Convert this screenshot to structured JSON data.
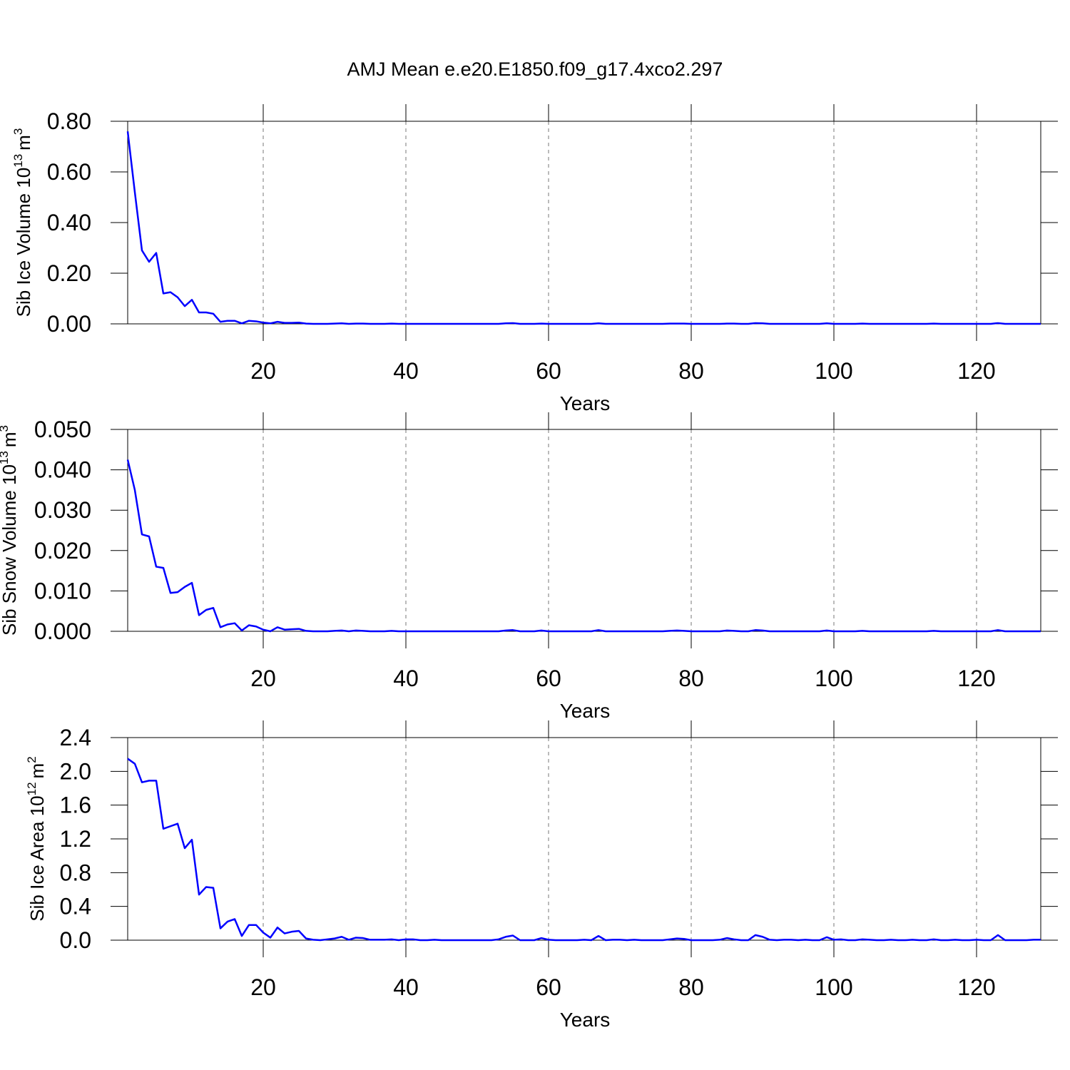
{
  "title": "AMJ Mean e.e20.E1850.f09_g17.4xco2.297",
  "chart_data": [
    {
      "type": "line",
      "xlabel": "Years",
      "ylabel": "Sib Ice Volume 10",
      "ylabel_exponent": "13",
      "ylabel_unit": "m",
      "ylabel_unit_exponent": "3",
      "xlim": [
        1,
        129
      ],
      "xticks": [
        20,
        40,
        60,
        80,
        100,
        120
      ],
      "grid": true,
      "ylim": [
        0,
        0.8
      ],
      "yticks": [
        {
          "value": 0,
          "label": "0.00"
        },
        {
          "value": 0.2,
          "label": "0.20"
        },
        {
          "value": 0.4,
          "label": "0.40"
        },
        {
          "value": 0.6,
          "label": "0.60"
        },
        {
          "value": 0.8,
          "label": "0.80"
        }
      ],
      "color": "#0000ff",
      "x": [
        1,
        2,
        3,
        4,
        5,
        6,
        7,
        8,
        9,
        10,
        11,
        12,
        13,
        14,
        15,
        16,
        17,
        18,
        19,
        20,
        21,
        22,
        23,
        24,
        25,
        26,
        27,
        28,
        29,
        30,
        31,
        32,
        33,
        34,
        35,
        36,
        37,
        38,
        39,
        40,
        41,
        42,
        43,
        44,
        45,
        46,
        47,
        48,
        49,
        50,
        51,
        52,
        53,
        54,
        55,
        56,
        57,
        58,
        59,
        60,
        61,
        62,
        63,
        64,
        65,
        66,
        67,
        68,
        69,
        70,
        71,
        72,
        73,
        74,
        75,
        76,
        77,
        78,
        79,
        80,
        81,
        82,
        83,
        84,
        85,
        86,
        87,
        88,
        89,
        90,
        91,
        92,
        93,
        94,
        95,
        96,
        97,
        98,
        99,
        100,
        101,
        102,
        103,
        104,
        105,
        106,
        107,
        108,
        109,
        110,
        111,
        112,
        113,
        114,
        115,
        116,
        117,
        118,
        119,
        120,
        121,
        122,
        123,
        124,
        125,
        126,
        127,
        128,
        129
      ],
      "values": [
        0.76,
        0.52,
        0.29,
        0.245,
        0.28,
        0.12,
        0.125,
        0.105,
        0.07,
        0.095,
        0.045,
        0.045,
        0.04,
        0.008,
        0.012,
        0.012,
        0.002,
        0.012,
        0.01,
        0.005,
        0.002,
        0.008,
        0.004,
        0.004,
        0.005,
        0.001,
        0,
        0,
        0,
        0.001,
        0.002,
        0,
        0.001,
        0.001,
        0,
        0,
        0,
        0.001,
        0,
        0,
        0,
        0,
        0,
        0,
        0,
        0,
        0,
        0,
        0,
        0,
        0,
        0,
        0,
        0.002,
        0.003,
        0,
        0,
        0,
        0.001,
        0,
        0,
        0,
        0,
        0,
        0,
        0,
        0.002,
        0,
        0,
        0,
        0,
        0,
        0,
        0,
        0,
        0,
        0.001,
        0.001,
        0.001,
        0,
        0,
        0,
        0,
        0,
        0.001,
        0.001,
        0,
        0,
        0.003,
        0.002,
        0,
        0,
        0,
        0,
        0,
        0,
        0,
        0,
        0.002,
        0,
        0,
        0,
        0,
        0.001,
        0,
        0,
        0,
        0,
        0,
        0,
        0,
        0,
        0,
        0.001,
        0,
        0,
        0,
        0,
        0,
        0,
        0,
        0,
        0.003,
        0,
        0,
        0,
        0,
        0,
        0
      ]
    },
    {
      "type": "line",
      "xlabel": "Years",
      "ylabel": "Sib Snow Volume 10",
      "ylabel_exponent": "13",
      "ylabel_unit": "m",
      "ylabel_unit_exponent": "3",
      "xlim": [
        1,
        129
      ],
      "xticks": [
        20,
        40,
        60,
        80,
        100,
        120
      ],
      "grid": true,
      "ylim": [
        0,
        0.05
      ],
      "yticks": [
        {
          "value": 0,
          "label": "0.000"
        },
        {
          "value": 0.01,
          "label": "0.010"
        },
        {
          "value": 0.02,
          "label": "0.020"
        },
        {
          "value": 0.03,
          "label": "0.030"
        },
        {
          "value": 0.04,
          "label": "0.040"
        },
        {
          "value": 0.05,
          "label": "0.050"
        }
      ],
      "color": "#0000ff",
      "x": [
        1,
        2,
        3,
        4,
        5,
        6,
        7,
        8,
        9,
        10,
        11,
        12,
        13,
        14,
        15,
        16,
        17,
        18,
        19,
        20,
        21,
        22,
        23,
        24,
        25,
        26,
        27,
        28,
        29,
        30,
        31,
        32,
        33,
        34,
        35,
        36,
        37,
        38,
        39,
        40,
        41,
        42,
        43,
        44,
        45,
        46,
        47,
        48,
        49,
        50,
        51,
        52,
        53,
        54,
        55,
        56,
        57,
        58,
        59,
        60,
        61,
        62,
        63,
        64,
        65,
        66,
        67,
        68,
        69,
        70,
        71,
        72,
        73,
        74,
        75,
        76,
        77,
        78,
        79,
        80,
        81,
        82,
        83,
        84,
        85,
        86,
        87,
        88,
        89,
        90,
        91,
        92,
        93,
        94,
        95,
        96,
        97,
        98,
        99,
        100,
        101,
        102,
        103,
        104,
        105,
        106,
        107,
        108,
        109,
        110,
        111,
        112,
        113,
        114,
        115,
        116,
        117,
        118,
        119,
        120,
        121,
        122,
        123,
        124,
        125,
        126,
        127,
        128,
        129
      ],
      "values": [
        0.0425,
        0.035,
        0.024,
        0.0235,
        0.016,
        0.0157,
        0.0095,
        0.0097,
        0.011,
        0.012,
        0.004,
        0.0053,
        0.0058,
        0.001,
        0.0017,
        0.002,
        0.0002,
        0.0015,
        0.0012,
        0.0004,
        0,
        0.001,
        0.0004,
        0.0005,
        0.0006,
        0.0001,
        0,
        0,
        0,
        0.0001,
        0.0002,
        0,
        0.0002,
        0.0001,
        0,
        0,
        0,
        0.0001,
        0,
        0,
        0,
        0,
        0,
        0,
        0,
        0,
        0,
        0,
        0,
        0,
        0,
        0,
        0,
        0.0002,
        0.0003,
        0,
        0,
        0,
        0.0002,
        0,
        0,
        0,
        0,
        0,
        0,
        0,
        0.0003,
        0,
        0,
        0,
        0,
        0,
        0,
        0,
        0,
        0,
        0.0001,
        0.0002,
        0.0001,
        0,
        0,
        0,
        0,
        0,
        0.0002,
        0.0001,
        0,
        0,
        0.0003,
        0.0002,
        0,
        0,
        0,
        0,
        0,
        0,
        0,
        0,
        0.0002,
        0,
        0,
        0,
        0,
        0.0001,
        0,
        0,
        0,
        0,
        0,
        0,
        0,
        0,
        0,
        0.0001,
        0,
        0,
        0,
        0,
        0,
        0,
        0,
        0,
        0.0003,
        0,
        0,
        0,
        0,
        0,
        0
      ]
    },
    {
      "type": "line",
      "xlabel": "Years",
      "ylabel": "Sib Ice Area 10",
      "ylabel_exponent": "12",
      "ylabel_unit": "m",
      "ylabel_unit_exponent": "2",
      "xlim": [
        1,
        129
      ],
      "xticks": [
        20,
        40,
        60,
        80,
        100,
        120
      ],
      "grid": true,
      "ylim": [
        0,
        2.4
      ],
      "yticks": [
        {
          "value": 0,
          "label": "0.0"
        },
        0.4,
        0.8,
        1.2,
        1.6,
        {
          "value": 2,
          "label": "2.0"
        },
        2.4
      ],
      "color": "#0000ff",
      "x": [
        1,
        2,
        3,
        4,
        5,
        6,
        7,
        8,
        9,
        10,
        11,
        12,
        13,
        14,
        15,
        16,
        17,
        18,
        19,
        20,
        21,
        22,
        23,
        24,
        25,
        26,
        27,
        28,
        29,
        30,
        31,
        32,
        33,
        34,
        35,
        36,
        37,
        38,
        39,
        40,
        41,
        42,
        43,
        44,
        45,
        46,
        47,
        48,
        49,
        50,
        51,
        52,
        53,
        54,
        55,
        56,
        57,
        58,
        59,
        60,
        61,
        62,
        63,
        64,
        65,
        66,
        67,
        68,
        69,
        70,
        71,
        72,
        73,
        74,
        75,
        76,
        77,
        78,
        79,
        80,
        81,
        82,
        83,
        84,
        85,
        86,
        87,
        88,
        89,
        90,
        91,
        92,
        93,
        94,
        95,
        96,
        97,
        98,
        99,
        100,
        101,
        102,
        103,
        104,
        105,
        106,
        107,
        108,
        109,
        110,
        111,
        112,
        113,
        114,
        115,
        116,
        117,
        118,
        119,
        120,
        121,
        122,
        123,
        124,
        125,
        126,
        127,
        128,
        129
      ],
      "values": [
        2.15,
        2.09,
        1.87,
        1.89,
        1.89,
        1.32,
        1.35,
        1.38,
        1.09,
        1.19,
        0.54,
        0.63,
        0.62,
        0.14,
        0.22,
        0.25,
        0.05,
        0.18,
        0.18,
        0.09,
        0.03,
        0.15,
        0.08,
        0.1,
        0.11,
        0.02,
        0.005,
        0,
        0.01,
        0.02,
        0.04,
        0.005,
        0.03,
        0.025,
        0.005,
        0.005,
        0.005,
        0.01,
        0,
        0.01,
        0.01,
        0,
        0,
        0.005,
        0,
        0,
        0,
        0,
        0,
        0,
        0,
        0,
        0.01,
        0.04,
        0.055,
        0,
        0,
        0,
        0.025,
        0.005,
        0,
        0,
        0,
        0,
        0.005,
        0,
        0.05,
        0,
        0.005,
        0.005,
        0,
        0.005,
        0,
        0,
        0,
        0,
        0.01,
        0.02,
        0.015,
        0,
        0,
        0,
        0,
        0.005,
        0.025,
        0.01,
        0,
        0,
        0.06,
        0.04,
        0.005,
        0,
        0.005,
        0.005,
        0,
        0.005,
        0,
        0,
        0.035,
        0.005,
        0.01,
        0,
        0,
        0.01,
        0.005,
        0,
        0,
        0.005,
        0,
        0,
        0.005,
        0,
        0,
        0.01,
        0,
        0,
        0.005,
        0,
        0,
        0.005,
        0,
        0,
        0.06,
        0,
        0,
        0,
        0,
        0.005,
        0.005
      ]
    }
  ]
}
